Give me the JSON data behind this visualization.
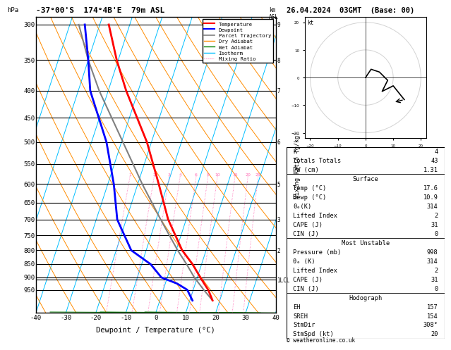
{
  "title_left": "-37°00'S  174°4B'E  79m ASL",
  "title_right": "26.04.2024  03GMT  (Base: 00)",
  "xlabel": "Dewpoint / Temperature (°C)",
  "background_color": "#ffffff",
  "temp_profile": {
    "pressure": [
      995,
      950,
      925,
      900,
      850,
      800,
      700,
      600,
      500,
      400,
      350,
      300
    ],
    "temp": [
      17.6,
      15.0,
      13.0,
      11.0,
      7.0,
      2.0,
      -6.0,
      -13.0,
      -21.5,
      -34.0,
      -40.5,
      -47.0
    ],
    "color": "#ff0000",
    "linewidth": 2.0
  },
  "dewp_profile": {
    "pressure": [
      995,
      950,
      925,
      900,
      850,
      800,
      700,
      600,
      500,
      400,
      350,
      300
    ],
    "temp": [
      10.9,
      8.0,
      4.0,
      -2.0,
      -7.0,
      -15.0,
      -23.0,
      -28.0,
      -35.0,
      -46.0,
      -50.0,
      -55.0
    ],
    "color": "#0000ff",
    "linewidth": 2.0
  },
  "parcel_profile": {
    "pressure": [
      995,
      950,
      900,
      850,
      800,
      700,
      600,
      500,
      400,
      350,
      300
    ],
    "temp": [
      17.6,
      13.5,
      9.0,
      5.0,
      0.5,
      -8.5,
      -18.5,
      -29.5,
      -43.0,
      -50.0,
      -57.0
    ],
    "color": "#808080",
    "linewidth": 1.5
  },
  "isotherm_color": "#00bfff",
  "dry_adiabat_color": "#ff8c00",
  "wet_adiabat_color": "#008000",
  "mixing_ratio_color": "#ff69b4",
  "mixing_ratio_values": [
    1,
    2,
    3,
    4,
    6,
    8,
    10,
    15,
    20,
    25
  ],
  "pressure_ticks": [
    300,
    350,
    400,
    450,
    500,
    550,
    600,
    650,
    700,
    750,
    800,
    850,
    900,
    950
  ],
  "lcl_pressure": 910,
  "table_data": {
    "K": "4",
    "Totals Totals": "43",
    "PW (cm)": "1.31",
    "Surface_Temp": "17.6",
    "Surface_Dewp": "10.9",
    "Surface_thetae": "314",
    "Surface_LI": "2",
    "Surface_CAPE": "31",
    "Surface_CIN": "0",
    "MU_Pressure": "998",
    "MU_thetae": "314",
    "MU_LI": "2",
    "MU_CAPE": "31",
    "MU_CIN": "0",
    "Hodo_EH": "157",
    "Hodo_SREH": "154",
    "Hodo_StmDir": "308°",
    "Hodo_StmSpd": "20"
  },
  "copyright": "© weatheronline.co.uk",
  "hodo_u": [
    0,
    2,
    5,
    8,
    6,
    10,
    14
  ],
  "hodo_v": [
    0,
    3,
    2,
    -1,
    -5,
    -3,
    -8
  ],
  "storm_u": [
    14,
    10
  ],
  "storm_v": [
    -8,
    -9
  ]
}
